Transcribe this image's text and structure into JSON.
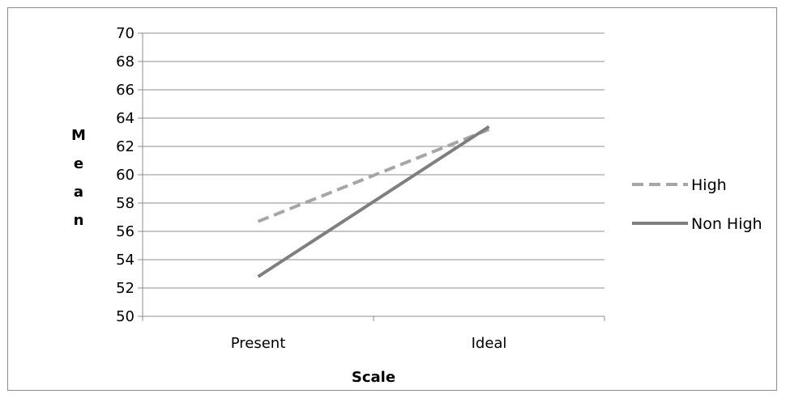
{
  "chart_data": {
    "type": "line",
    "title": "",
    "xlabel": "Scale",
    "ylabel": "Mean",
    "ylabel_letters": [
      "M",
      "e",
      "a",
      "n"
    ],
    "categories": [
      "Present",
      "Ideal"
    ],
    "ylim": [
      50,
      70
    ],
    "ytick_step": 2,
    "yticks": [
      "50",
      "52",
      "54",
      "56",
      "58",
      "60",
      "62",
      "64",
      "66",
      "68",
      "70"
    ],
    "grid": true,
    "legend_position": "right",
    "series": [
      {
        "name": "High",
        "values": [
          56.7,
          63.2
        ],
        "color": "#a6a6a6",
        "style": "dashed"
      },
      {
        "name": "Non High",
        "values": [
          52.8,
          63.4
        ],
        "color": "#7f7f7f",
        "style": "solid"
      }
    ]
  }
}
